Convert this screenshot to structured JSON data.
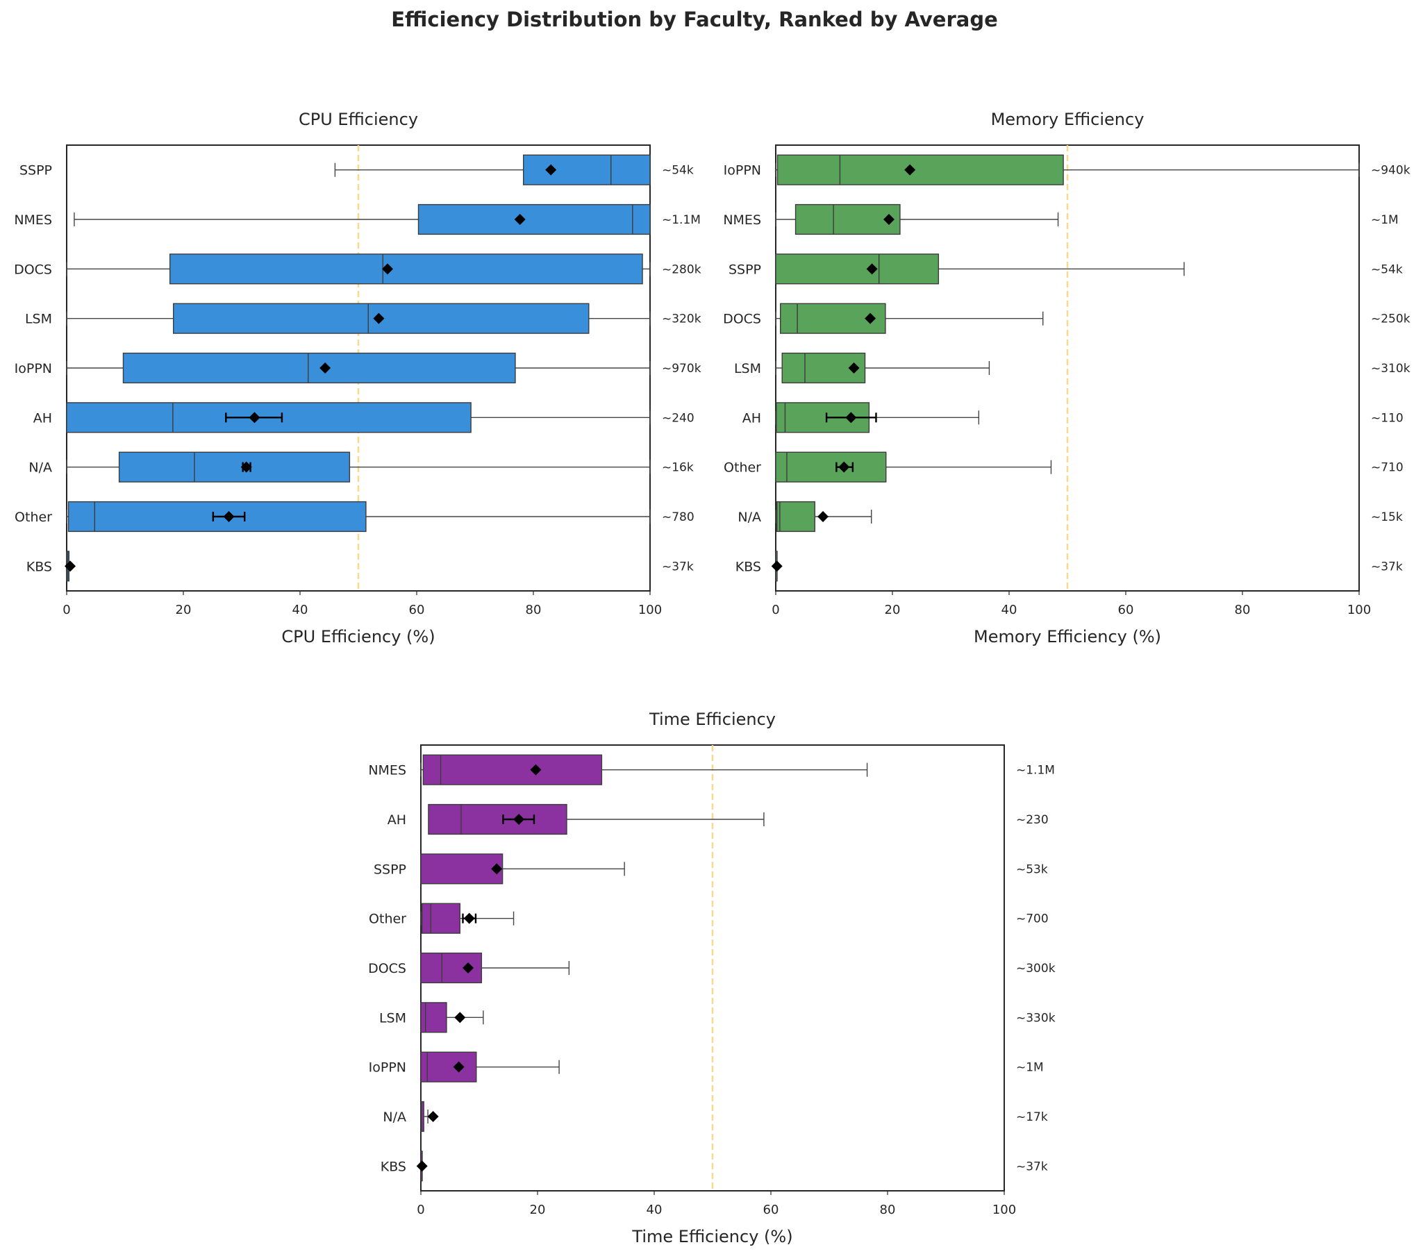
{
  "suptitle": "Efficiency Distribution by Faculty, Ranked by Average",
  "chart_data": [
    {
      "type": "boxplot",
      "orientation": "horizontal",
      "title": "CPU Efficiency",
      "xlabel": "CPU Efficiency (%)",
      "xlim": [
        0,
        100
      ],
      "xticks": [
        0,
        20,
        40,
        60,
        80,
        100
      ],
      "reference_line": 50,
      "color": "#3a8fdb",
      "categories": [
        "SSPP",
        "NMES",
        "DOCS",
        "LSM",
        "IoPPN",
        "AH",
        "N/A",
        "Other",
        "KBS"
      ],
      "boxes": [
        {
          "label": "SSPP",
          "whisker_low": 46,
          "q1": 78.3,
          "median": 93.3,
          "q3": 100,
          "whisker_high": 100,
          "mean": 83,
          "count": "~54k"
        },
        {
          "label": "NMES",
          "whisker_low": 1.3,
          "q1": 60.3,
          "median": 97,
          "q3": 100,
          "whisker_high": 100,
          "mean": 77.7,
          "count": "~1.1M"
        },
        {
          "label": "DOCS",
          "whisker_low": 0,
          "q1": 17.7,
          "median": 54.2,
          "q3": 98.7,
          "whisker_high": 100,
          "mean": 55,
          "count": "~280k"
        },
        {
          "label": "LSM",
          "whisker_low": 0,
          "q1": 18.3,
          "median": 51.7,
          "q3": 89.5,
          "whisker_high": 100,
          "mean": 53.5,
          "count": "~320k"
        },
        {
          "label": "IoPPN",
          "whisker_low": 0,
          "q1": 9.7,
          "median": 41.4,
          "q3": 76.9,
          "whisker_high": 100,
          "mean": 44.3,
          "count": "~970k"
        },
        {
          "label": "AH",
          "whisker_low": 0,
          "q1": 0,
          "median": 18.2,
          "q3": 69.3,
          "whisker_high": 100,
          "mean": 32.2,
          "mean_ci": [
            27.3,
            36.9
          ],
          "count": "~240"
        },
        {
          "label": "N/A",
          "whisker_low": 0,
          "q1": 9,
          "median": 21.9,
          "q3": 48.5,
          "whisker_high": 100,
          "mean": 30.8,
          "mean_ci": [
            30.2,
            31.5
          ],
          "count": "~16k"
        },
        {
          "label": "Other",
          "whisker_low": 0,
          "q1": 0.3,
          "median": 4.8,
          "q3": 51.3,
          "whisker_high": 100,
          "mean": 27.8,
          "mean_ci": [
            25.1,
            30.5
          ],
          "count": "~780"
        },
        {
          "label": "KBS",
          "whisker_low": 0,
          "q1": 0,
          "median": 0.2,
          "q3": 0.4,
          "whisker_high": 0.4,
          "mean": 0.6,
          "count": "~37k"
        }
      ]
    },
    {
      "type": "boxplot",
      "orientation": "horizontal",
      "title": "Memory Efficiency",
      "xlabel": "Memory Efficiency (%)",
      "xlim": [
        0,
        100
      ],
      "xticks": [
        0,
        20,
        40,
        60,
        80,
        100
      ],
      "reference_line": 50,
      "color": "#5aa35a",
      "categories": [
        "IoPPN",
        "NMES",
        "SSPP",
        "DOCS",
        "LSM",
        "AH",
        "Other",
        "N/A",
        "KBS"
      ],
      "boxes": [
        {
          "label": "IoPPN",
          "whisker_low": 0,
          "q1": 0.3,
          "median": 11,
          "q3": 49.3,
          "whisker_high": 100,
          "mean": 23,
          "count": "~940k"
        },
        {
          "label": "NMES",
          "whisker_low": 0,
          "q1": 3.4,
          "median": 9.9,
          "q3": 21.3,
          "whisker_high": 48.4,
          "mean": 19.4,
          "count": "~1M"
        },
        {
          "label": "SSPP",
          "whisker_low": 0,
          "q1": 0,
          "median": 17.7,
          "q3": 27.9,
          "whisker_high": 70,
          "mean": 16.5,
          "count": "~54k"
        },
        {
          "label": "DOCS",
          "whisker_low": 0,
          "q1": 0.8,
          "median": 3.7,
          "q3": 18.8,
          "whisker_high": 45.8,
          "mean": 16.2,
          "count": "~250k"
        },
        {
          "label": "LSM",
          "whisker_low": 0,
          "q1": 1.1,
          "median": 5,
          "q3": 15.3,
          "whisker_high": 36.6,
          "mean": 13.4,
          "count": "~310k"
        },
        {
          "label": "AH",
          "whisker_low": 0,
          "q1": 0.1,
          "median": 1.6,
          "q3": 16,
          "whisker_high": 34.8,
          "mean": 12.9,
          "mean_ci": [
            8.7,
            17.2
          ],
          "count": "~110"
        },
        {
          "label": "Other",
          "whisker_low": 0,
          "q1": 0,
          "median": 1.9,
          "q3": 18.9,
          "whisker_high": 47.2,
          "mean": 11.7,
          "mean_ci": [
            10.4,
            13.2
          ],
          "count": "~710"
        },
        {
          "label": "N/A",
          "whisker_low": 0,
          "q1": 0.2,
          "median": 0.7,
          "q3": 6.7,
          "whisker_high": 16.4,
          "mean": 8.1,
          "count": "~15k"
        },
        {
          "label": "KBS",
          "whisker_low": 0,
          "q1": 0,
          "median": 0,
          "q3": 0,
          "whisker_high": 0,
          "mean": 0.2,
          "count": "~37k"
        }
      ]
    },
    {
      "type": "boxplot",
      "orientation": "horizontal",
      "title": "Time Efficiency",
      "xlabel": "Time Efficiency (%)",
      "xlim": [
        0,
        100
      ],
      "xticks": [
        0,
        20,
        40,
        60,
        80,
        100
      ],
      "reference_line": 50,
      "color": "#8c32a0",
      "categories": [
        "NMES",
        "AH",
        "SSPP",
        "Other",
        "DOCS",
        "LSM",
        "IoPPN",
        "N/A",
        "KBS"
      ],
      "boxes": [
        {
          "label": "NMES",
          "whisker_low": 0,
          "q1": 0.4,
          "median": 3.4,
          "q3": 31,
          "whisker_high": 76.5,
          "mean": 19.7,
          "count": "~1.1M"
        },
        {
          "label": "AH",
          "whisker_low": 1.3,
          "q1": 1.3,
          "median": 6.9,
          "q3": 25,
          "whisker_high": 58.8,
          "mean": 16.8,
          "mean_ci": [
            14.1,
            19.4
          ],
          "count": "~230"
        },
        {
          "label": "SSPP",
          "whisker_low": 0,
          "q1": 0,
          "median": 0,
          "q3": 14,
          "whisker_high": 34.9,
          "mean": 13,
          "count": "~53k"
        },
        {
          "label": "Other",
          "whisker_low": 0,
          "q1": 0.2,
          "median": 1.7,
          "q3": 6.7,
          "whisker_high": 15.9,
          "mean": 8.3,
          "mean_ci": [
            7.2,
            9.4
          ],
          "count": "~700"
        },
        {
          "label": "DOCS",
          "whisker_low": 0,
          "q1": 0,
          "median": 3.6,
          "q3": 10.4,
          "whisker_high": 25.4,
          "mean": 8.1,
          "count": "~300k"
        },
        {
          "label": "LSM",
          "whisker_low": 0,
          "q1": 0,
          "median": 0.8,
          "q3": 4.4,
          "whisker_high": 10.7,
          "mean": 6.7,
          "count": "~330k"
        },
        {
          "label": "IoPPN",
          "whisker_low": 0,
          "q1": 0,
          "median": 1.1,
          "q3": 9.5,
          "whisker_high": 23.7,
          "mean": 6.5,
          "count": "~1M"
        },
        {
          "label": "N/A",
          "whisker_low": 0,
          "q1": 0,
          "median": 0.1,
          "q3": 0.5,
          "whisker_high": 1.2,
          "mean": 2.1,
          "count": "~17k"
        },
        {
          "label": "KBS",
          "whisker_low": 0,
          "q1": 0,
          "median": 0,
          "q3": 0,
          "whisker_high": 0,
          "mean": 0.2,
          "count": "~37k"
        }
      ]
    }
  ]
}
